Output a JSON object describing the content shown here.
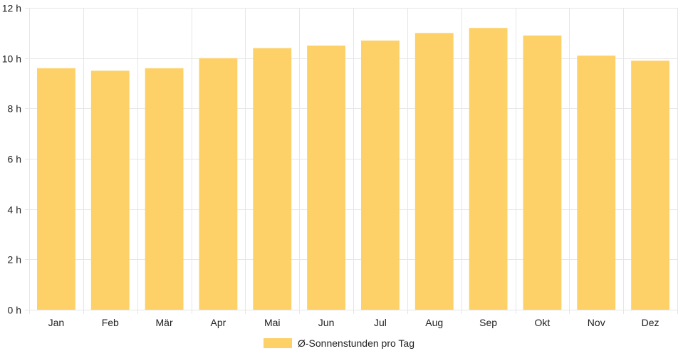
{
  "chart_data": {
    "type": "bar",
    "categories": [
      "Jan",
      "Feb",
      "Mär",
      "Apr",
      "Mai",
      "Jun",
      "Jul",
      "Aug",
      "Sep",
      "Okt",
      "Nov",
      "Dez"
    ],
    "series": [
      {
        "name": "Ø-Sonnenstunden pro Tag",
        "values": [
          9.6,
          9.5,
          9.6,
          10.0,
          10.4,
          10.5,
          10.7,
          11.0,
          11.2,
          10.9,
          10.1,
          9.9
        ],
        "color": "#fdd168"
      }
    ],
    "y_ticks": [
      "0 h",
      "2 h",
      "4 h",
      "6 h",
      "8 h",
      "10 h",
      "12 h"
    ],
    "ylim": [
      0,
      12
    ],
    "grid": true,
    "legend_position": "bottom",
    "grid_color": "#e6e6e6"
  }
}
